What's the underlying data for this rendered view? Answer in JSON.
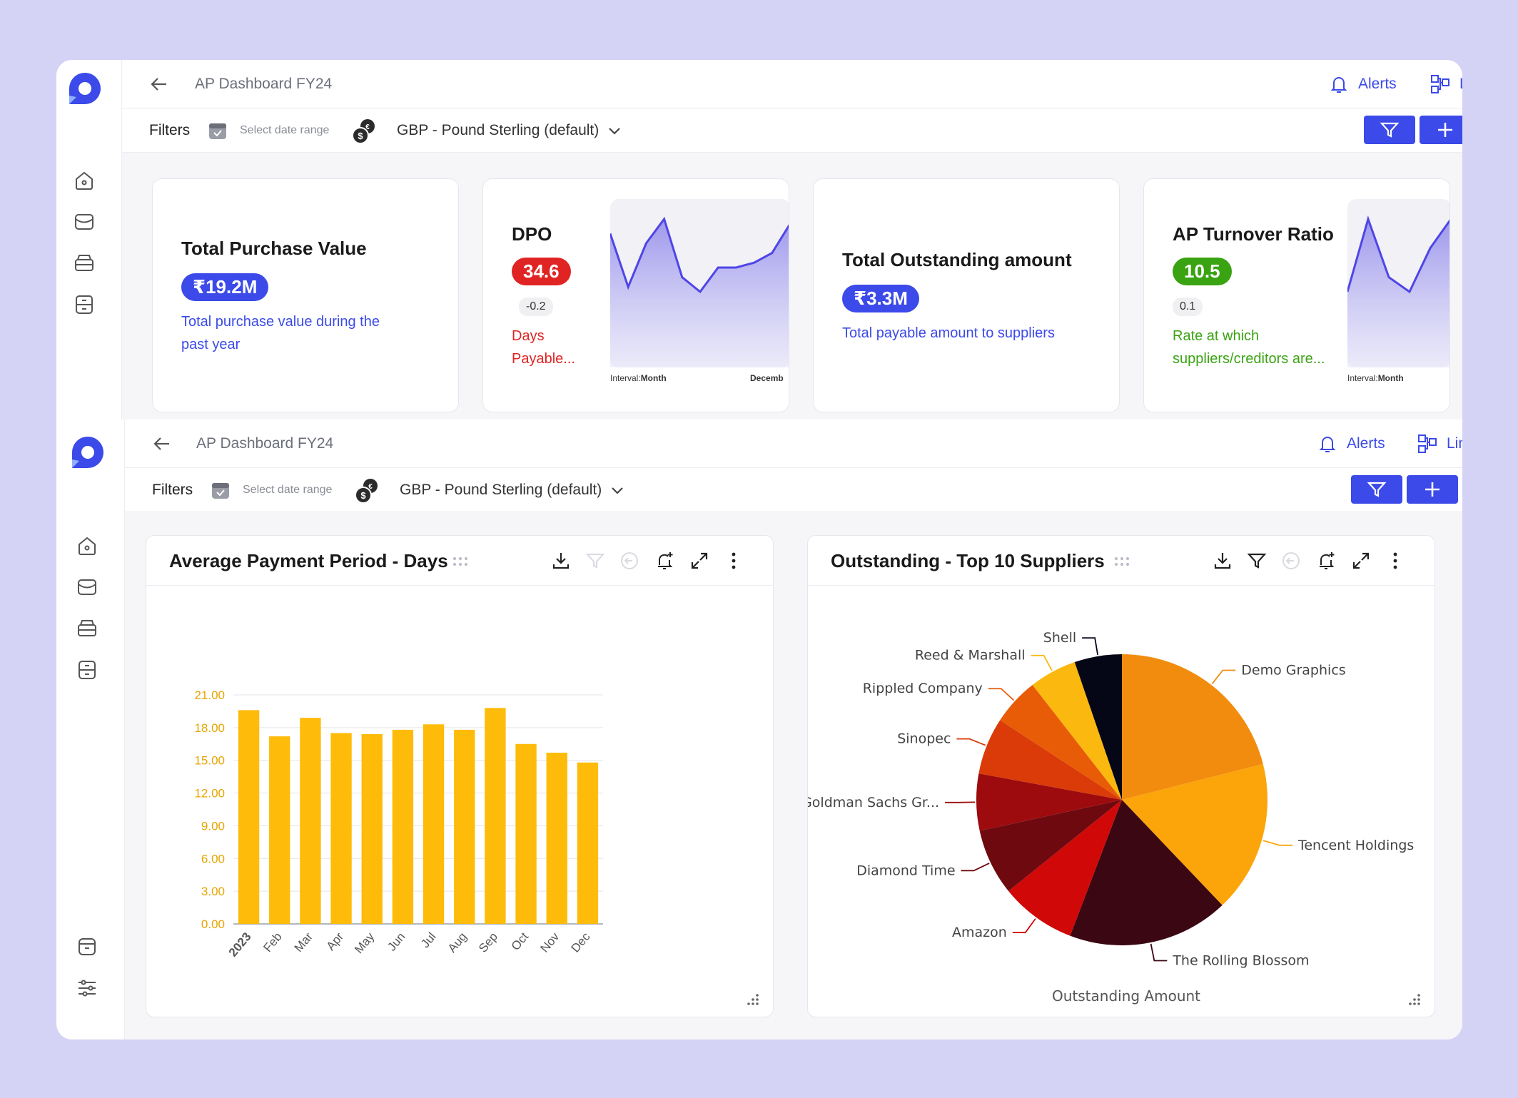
{
  "app": {
    "title": "AP Dashboard FY24",
    "alerts_label": "Alerts",
    "lineage_label": "Lineage",
    "filters_label": "Filters",
    "date_range_placeholder": "Select date range",
    "currency": "GBP - Pound Sterling (default)"
  },
  "colors": {
    "accent": "#3b4ae8",
    "danger": "#e02424",
    "success": "#3aa312",
    "bar": "#ffbb0a"
  },
  "kpis": [
    {
      "title": "Total Purchase Value",
      "value": "₹19.2M",
      "description": "Total purchase value during the past year",
      "tone": "blue"
    },
    {
      "title": "DPO",
      "value": "34.6",
      "delta": "-0.2",
      "description": "Days Payable...",
      "tone": "red",
      "interval_label": "Interval:",
      "interval_value": "Month",
      "axis_end": "Decemb"
    },
    {
      "title": "Total Outstanding amount",
      "value": "₹3.3M",
      "description": "Total payable amount to suppliers",
      "tone": "blue"
    },
    {
      "title": "AP Turnover Ratio",
      "value": "10.5",
      "delta": "0.1",
      "description": "Rate at which suppliers/creditors are...",
      "tone": "green",
      "interval_label": "Interval:",
      "interval_value": "Month"
    }
  ],
  "sparklines": {
    "dpo": [
      34.2,
      33.1,
      34.0,
      34.5,
      33.3,
      33.0,
      33.5,
      33.5,
      33.6,
      33.8,
      34.4
    ],
    "turnover": [
      10.1,
      10.6,
      10.2,
      10.1,
      10.4,
      10.6
    ]
  },
  "panels": {
    "payment_period_title": "Average Payment Period - Days",
    "suppliers_title": "Outstanding - Top 10 Suppliers"
  },
  "chart_data": [
    {
      "type": "bar",
      "title": "Average Payment Period - Days",
      "categories": [
        "2023",
        "Feb",
        "Mar",
        "Apr",
        "May",
        "Jun",
        "Jul",
        "Aug",
        "Sep",
        "Oct",
        "Nov",
        "Dec"
      ],
      "values": [
        19.6,
        17.2,
        18.9,
        17.5,
        17.4,
        17.8,
        18.3,
        17.8,
        19.8,
        16.5,
        15.7,
        14.8
      ],
      "ylim": [
        0,
        21
      ],
      "yticks": [
        "0.00",
        "3.00",
        "6.00",
        "9.00",
        "12.00",
        "15.00",
        "18.00",
        "21.00"
      ],
      "grid": true
    },
    {
      "type": "pie",
      "title": "Outstanding - Top 10 Suppliers",
      "caption": "Outstanding Amount",
      "slices": [
        {
          "label": "Demo Graphics",
          "value": 20,
          "color": "#f28c0f"
        },
        {
          "label": "Tencent Holdings",
          "value": 16,
          "color": "#fba50a"
        },
        {
          "label": "The Rolling Blossom",
          "value": 17,
          "color": "#3b0712"
        },
        {
          "label": "Amazon",
          "value": 8,
          "color": "#d10808"
        },
        {
          "label": "Diamond Time",
          "value": 7,
          "color": "#6e0a0f"
        },
        {
          "label": "Goldman Sachs Gr...",
          "value": 6,
          "color": "#9d0b0e"
        },
        {
          "label": "Sinopec",
          "value": 6,
          "color": "#da3b08"
        },
        {
          "label": "Rippled Company",
          "value": 5,
          "color": "#e85c08"
        },
        {
          "label": "Reed & Marshall",
          "value": 5,
          "color": "#fbb80f"
        },
        {
          "label": "Shell",
          "value": 5,
          "color": "#050716"
        }
      ]
    }
  ]
}
